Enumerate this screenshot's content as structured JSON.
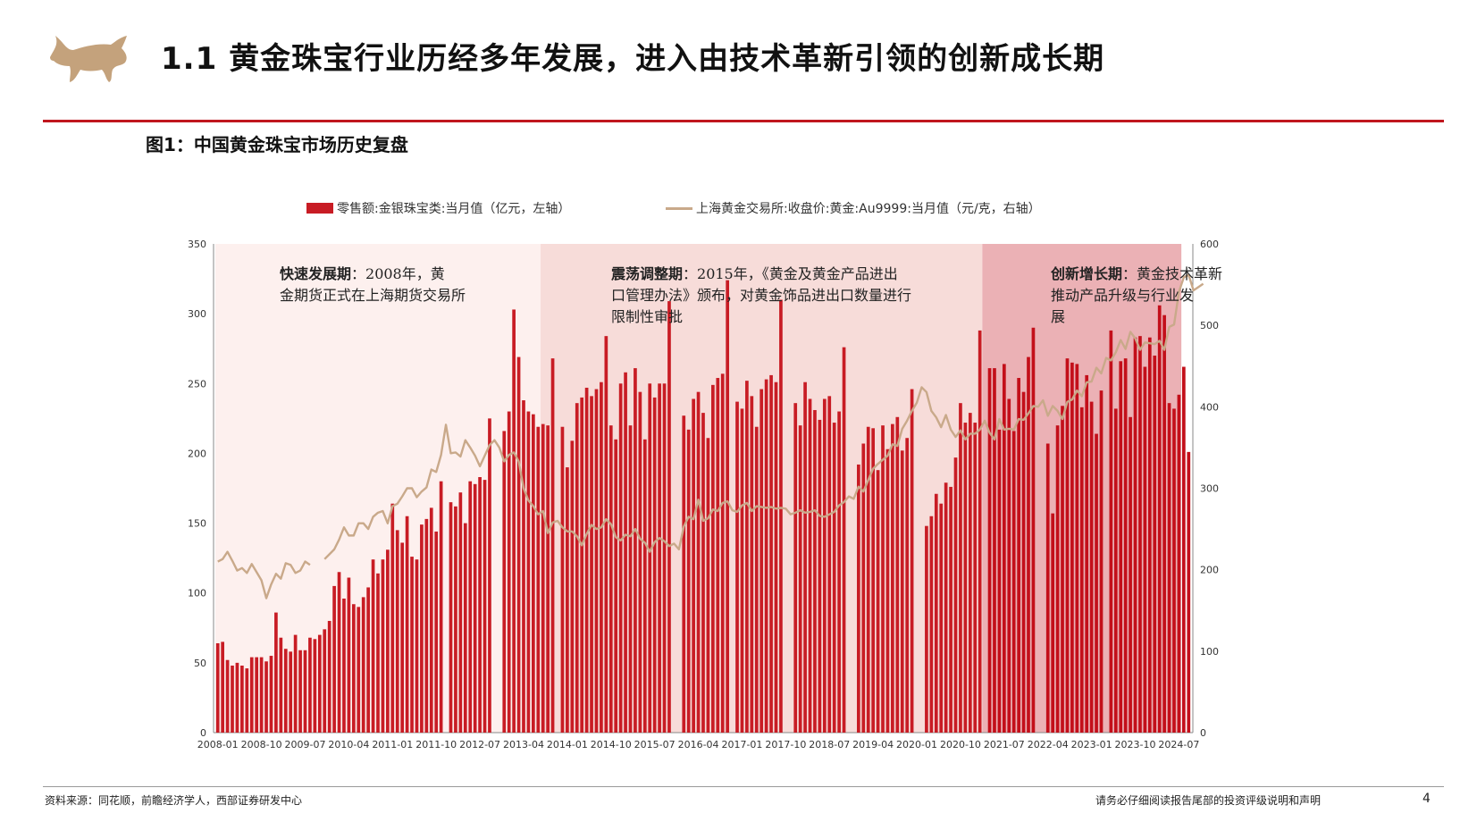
{
  "header": {
    "title": "1.1 黄金珠宝行业历经多年发展，进入由技术革新引领的创新成长期"
  },
  "figure": {
    "title": "图1：中国黄金珠宝市场历史复盘"
  },
  "footer": {
    "source": "资料来源：同花顺，前瞻经济学人，西部证券研发中心",
    "disclaimer": "请务必仔细阅读报告尾部的投资评级说明和声明",
    "page": "4"
  },
  "colors": {
    "brand_red": "#c0161e",
    "bar_red": "#c81c24",
    "line_tan": "#c9a98a",
    "zone1": "#fdf0ee",
    "zone2": "#f7dcd9",
    "zone3": "#e9a8ad",
    "logo_gold": "#c4a27c"
  },
  "icons": {
    "logo": "bull-logo-icon"
  },
  "chart_data": {
    "type": "bar+line",
    "legend": [
      "零售额:金银珠宝类:当月值（亿元，左轴）",
      "上海黄金交易所:收盘价:黄金:Au9999:当月值（元/克，右轴）"
    ],
    "legend_position": "top",
    "ylim_left": [
      0,
      350
    ],
    "yticks_left": [
      "0",
      "50",
      "100",
      "150",
      "200",
      "250",
      "300",
      "350"
    ],
    "ylim_right": [
      0,
      600
    ],
    "yticks_right": [
      "0",
      "100",
      "200",
      "300",
      "400",
      "500",
      "600"
    ],
    "xticks": [
      "2008-01",
      "2008-10",
      "2009-07",
      "2010-04",
      "2011-01",
      "2011-10",
      "2012-07",
      "2013-04",
      "2014-01",
      "2014-10",
      "2015-07",
      "2016-04",
      "2017-01",
      "2017-10",
      "2018-07",
      "2019-04",
      "2020-01",
      "2020-10",
      "2021-07",
      "2022-04",
      "2023-01",
      "2023-10",
      "2024-07"
    ],
    "series": [
      {
        "name": "零售额:金银珠宝类:当月值（亿元，左轴）",
        "type": "bar",
        "start": "2008-01",
        "values": [
          64,
          65,
          52,
          48,
          50,
          48,
          46,
          54,
          54,
          54,
          51,
          55,
          86,
          68,
          60,
          58,
          70,
          59,
          59,
          68,
          67,
          70,
          74,
          80,
          105,
          115,
          96,
          111,
          92,
          90,
          97,
          104,
          124,
          114,
          124,
          131,
          164,
          145,
          136,
          155,
          126,
          124,
          149,
          153,
          161,
          144,
          180,
          null,
          165,
          162,
          172,
          150,
          180,
          178,
          183,
          181,
          225,
          null,
          null,
          216,
          230,
          303,
          269,
          238,
          230,
          228,
          219,
          221,
          220,
          268,
          null,
          219,
          190,
          209,
          236,
          240,
          247,
          241,
          246,
          251,
          284,
          220,
          210,
          250,
          258,
          220,
          261,
          244,
          210,
          250,
          240,
          250,
          250,
          309,
          null,
          null,
          227,
          217,
          239,
          244,
          229,
          211,
          249,
          254,
          257,
          324,
          null,
          237,
          232,
          252,
          241,
          219,
          246,
          253,
          256,
          251,
          310,
          null,
          null,
          236,
          220,
          251,
          239,
          231,
          224,
          239,
          241,
          222,
          230,
          276,
          null,
          null,
          192,
          207,
          219,
          218,
          188,
          220,
          203,
          221,
          226,
          202,
          211,
          246,
          null,
          null,
          148,
          155,
          171,
          164,
          179,
          176,
          197,
          236,
          222,
          229,
          222,
          288,
          null,
          261,
          261,
          217,
          264,
          239,
          216,
          254,
          244,
          269,
          290,
          null,
          null,
          207,
          157,
          220,
          234,
          268,
          265,
          264,
          233,
          256,
          237,
          214,
          245,
          null,
          288,
          232,
          266,
          268,
          226,
          283,
          284,
          262,
          283,
          270,
          306,
          299,
          236,
          232,
          242,
          262,
          201
        ]
      },
      {
        "name": "上海黄金交易所:收盘价:黄金:Au9999:当月值（元/克，右轴）",
        "type": "line",
        "start": "2008-01",
        "values": [
          210,
          213,
          222,
          211,
          199,
          202,
          196,
          207,
          197,
          187,
          165,
          182,
          195,
          189,
          208,
          206,
          196,
          199,
          210,
          206,
          null,
          null,
          213,
          219,
          225,
          237,
          252,
          242,
          242,
          257,
          257,
          250,
          265,
          270,
          272,
          257,
          278,
          281,
          290,
          300,
          300,
          289,
          296,
          301,
          323,
          320,
          341,
          378,
          343,
          344,
          339,
          359,
          350,
          340,
          327,
          340,
          353,
          359,
          350,
          333,
          341,
          344,
          333,
          300,
          285,
          278,
          268,
          272,
          245,
          258,
          260,
          252,
          247,
          247,
          241,
          230,
          244,
          255,
          250,
          252,
          262,
          256,
          240,
          236,
          243,
          241,
          250,
          238,
          233,
          222,
          234,
          239,
          235,
          229,
          232,
          225,
          253,
          265,
          262,
          286,
          260,
          263,
          274,
          272,
          282,
          284,
          273,
          271,
          279,
          282,
          272,
          278,
          277,
          276,
          277,
          275,
          276,
          275,
          268,
          270,
          273,
          270,
          271,
          273,
          266,
          265,
          268,
          271,
          279,
          283,
          290,
          287,
          302,
          296,
          310,
          324,
          330,
          335,
          340,
          354,
          352,
          373,
          383,
          395,
          405,
          424,
          418,
          395,
          387,
          375,
          390,
          372,
          363,
          371,
          360,
          367,
          367,
          372,
          383,
          368,
          360,
          385,
          372,
          373,
          372,
          385,
          384,
          392,
          401,
          400,
          408,
          389,
          401,
          395,
          385,
          406,
          409,
          420,
          413,
          430,
          431,
          448,
          441,
          460,
          457,
          467,
          482,
          471,
          492,
          484,
          470,
          479,
          478,
          477,
          481,
          470,
          498,
          501,
          541,
          559,
          562,
          543,
          547,
          551
        ]
      }
    ],
    "periods": [
      {
        "label": "快速发展期",
        "text": "：2008年，黄金期货正式在上海期货交易所",
        "start": "2008-01",
        "end": "2013-07"
      },
      {
        "label": "震荡调整期",
        "text": "：2015年，《黄金及黄金产品进出口管理办法》颁布，对黄金饰品进出口数量进行限制性审批",
        "start": "2013-08",
        "end": "2021-02"
      },
      {
        "label": "创新增长期",
        "text": "：黄金技术革新推动产品升级与行业发展",
        "start": "2021-03",
        "end": "2024-07"
      }
    ]
  }
}
